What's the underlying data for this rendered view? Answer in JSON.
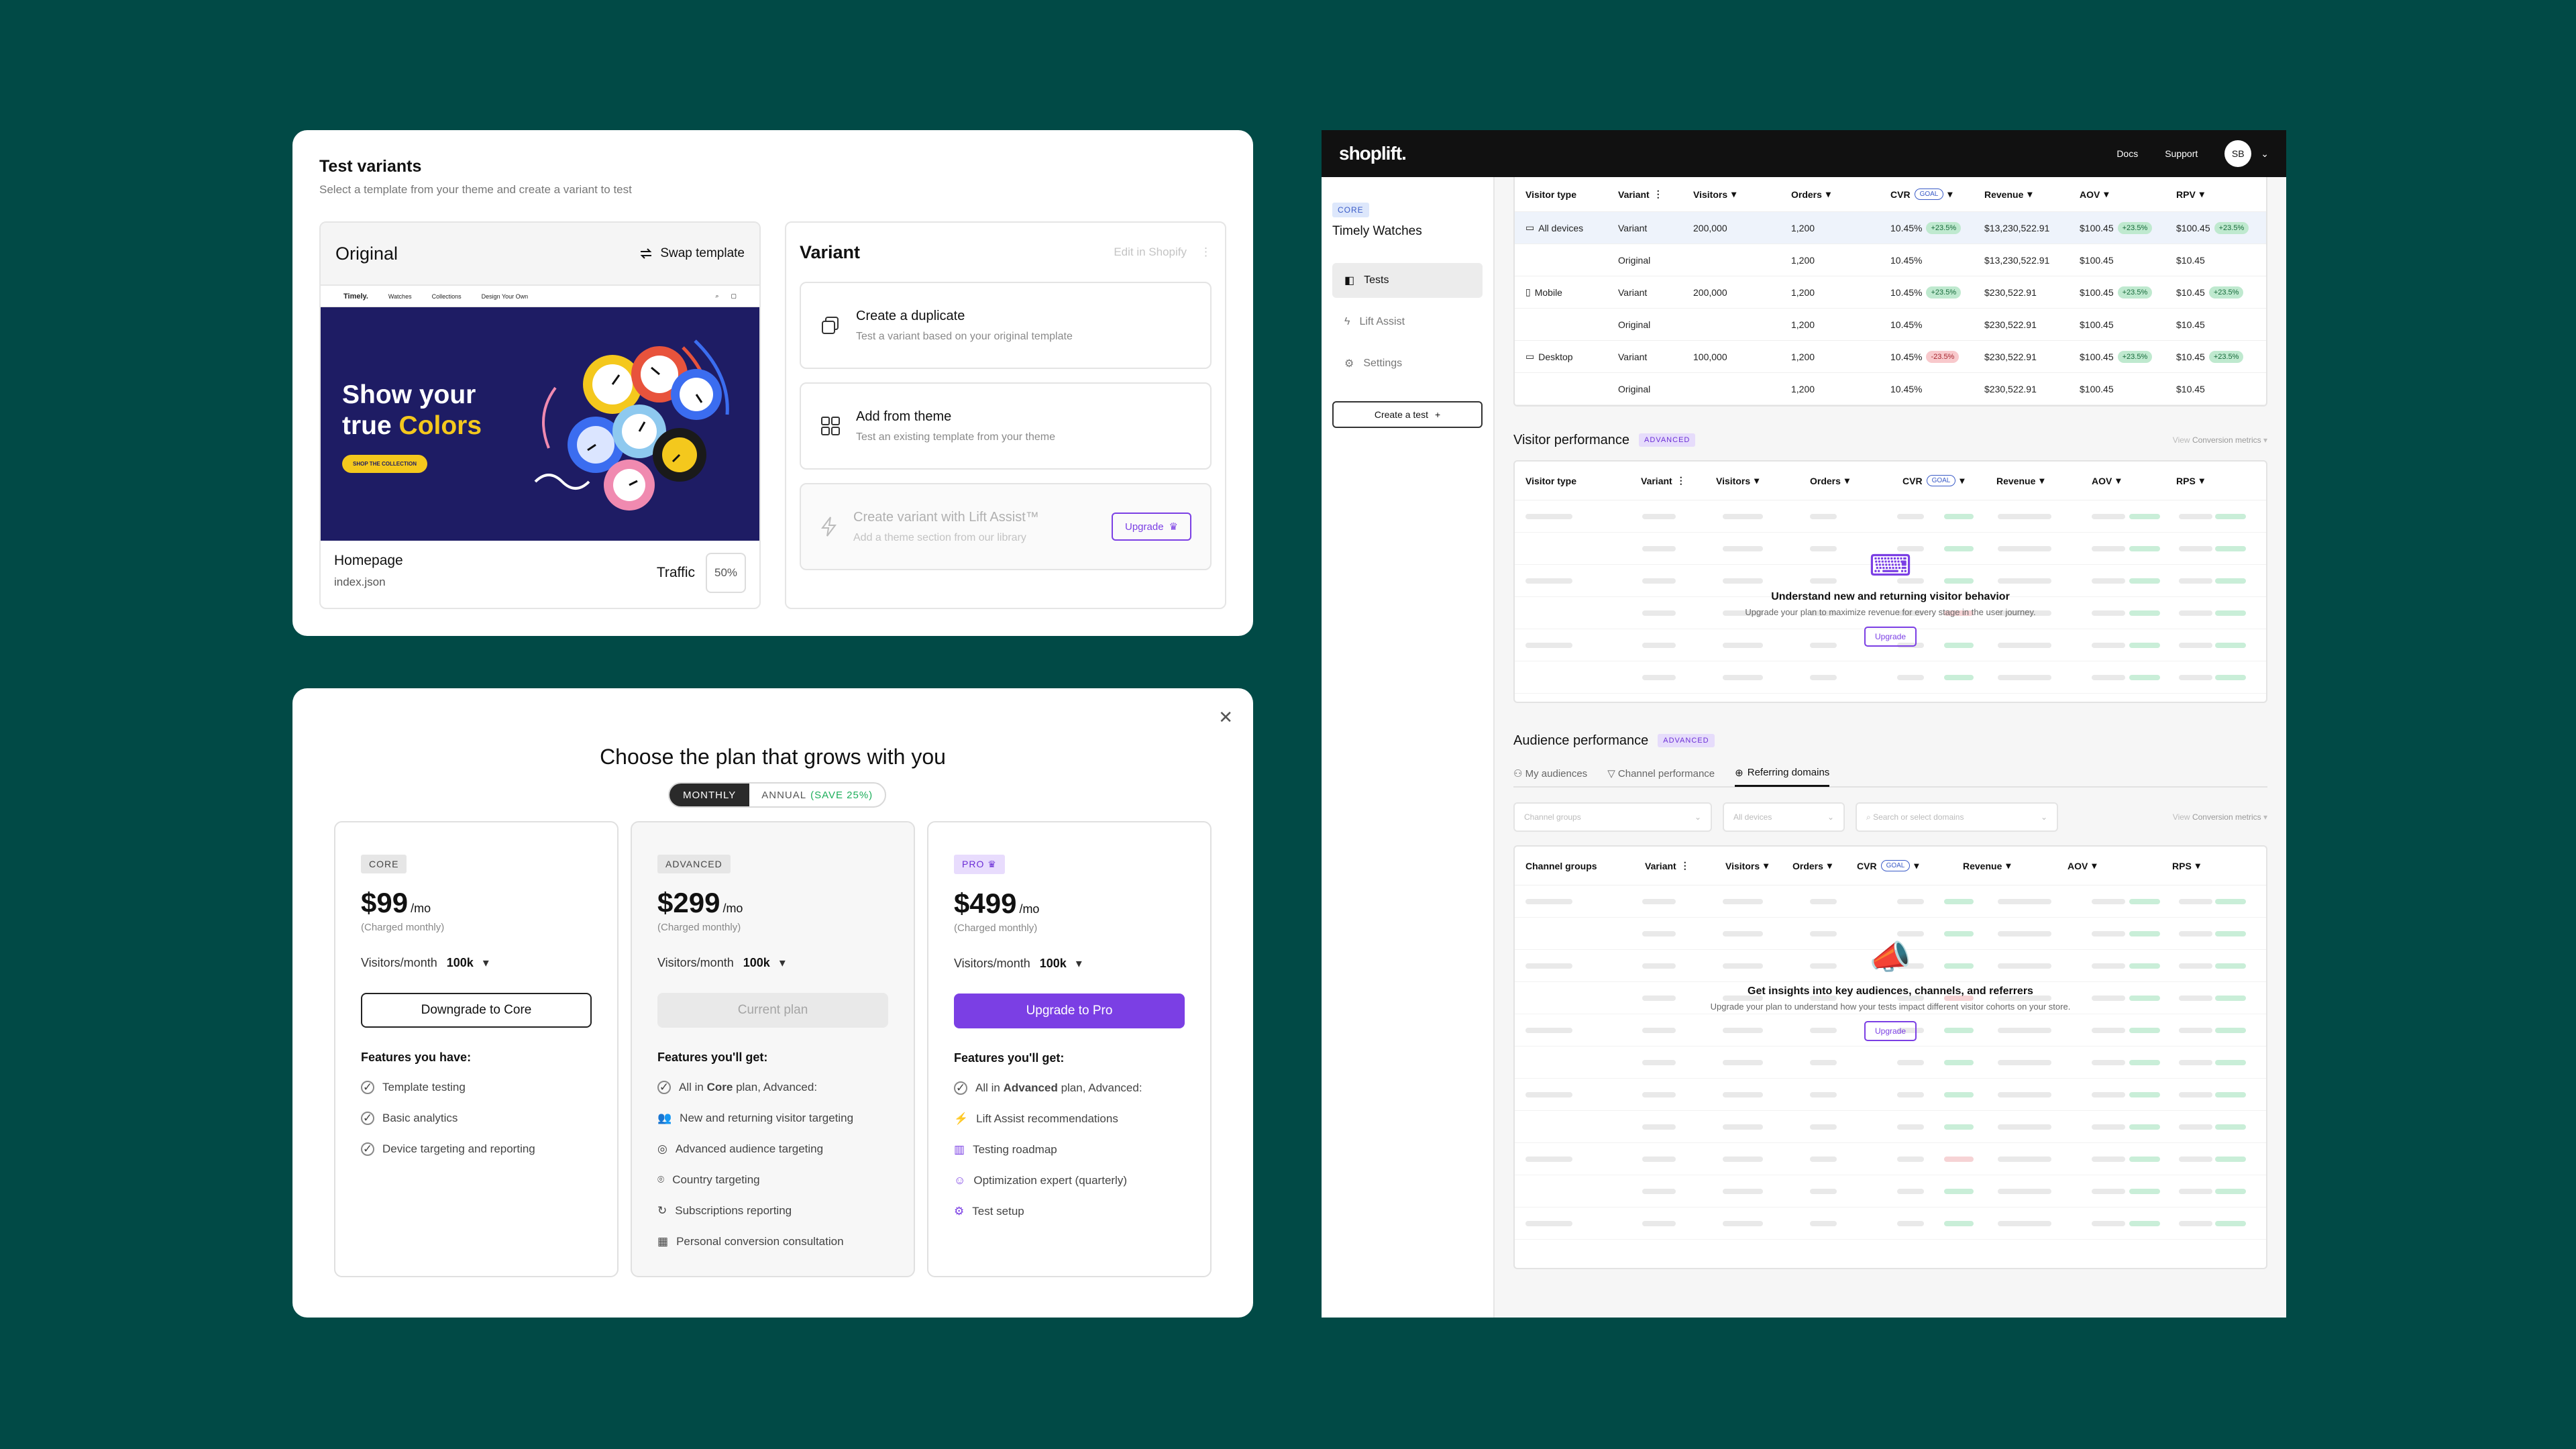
{
  "test_variants": {
    "title": "Test variants",
    "subtitle": "Select a template from your theme and create a variant to test",
    "original": {
      "label": "Original",
      "swap_label": "Swap template",
      "preview": {
        "logo": "Timely.",
        "nav": [
          "Watches",
          "Collections",
          "Design Your Own"
        ],
        "headline_1": "Show your",
        "headline_2": "true",
        "headline_accent": "Colors",
        "cta": "SHOP THE COLLECTION"
      },
      "template_name": "Homepage",
      "file": "index.json",
      "traffic_label": "Traffic",
      "traffic_value": "50%"
    },
    "variant": {
      "label": "Variant",
      "edit_label": "Edit in Shopify",
      "options": [
        {
          "title": "Create a duplicate",
          "desc": "Test a variant based on your original template"
        },
        {
          "title": "Add from theme",
          "desc": "Test an existing template from your theme"
        },
        {
          "title": "Create variant with Lift Assist™",
          "desc": "Add a theme section from our library",
          "button": "Upgrade"
        }
      ]
    }
  },
  "plans": {
    "title": "Choose the plan that grows with you",
    "toggle": {
      "monthly": "MONTHLY",
      "annual": "ANNUAL",
      "save": "(SAVE 25%)"
    },
    "items": [
      {
        "badge": "CORE",
        "price": "$99",
        "per": "/mo",
        "charged": "(Charged monthly)",
        "visitors_label": "Visitors/month",
        "visitors_value": "100k",
        "button": "Downgrade to Core",
        "features_head": "Features you have:",
        "features": [
          "Template testing",
          "Basic analytics",
          "Device targeting and reporting"
        ]
      },
      {
        "badge": "ADVANCED",
        "price": "$299",
        "per": "/mo",
        "charged": "(Charged monthly)",
        "visitors_label": "Visitors/month",
        "visitors_value": "100k",
        "button": "Current plan",
        "features_head": "Features you'll get:",
        "features_intro_pre": "All in",
        "features_intro_plan": "Core",
        "features_intro_post": "plan, Advanced:",
        "features": [
          "New and returning visitor targeting",
          "Advanced audience targeting",
          "Country targeting",
          "Subscriptions reporting",
          "Personal conversion consultation"
        ]
      },
      {
        "badge": "PRO",
        "price": "$499",
        "per": "/mo",
        "charged": "(Charged monthly)",
        "visitors_label": "Visitors/month",
        "visitors_value": "100k",
        "button": "Upgrade to Pro",
        "features_head": "Features you'll get:",
        "features_intro_pre": "All in",
        "features_intro_plan": "Advanced",
        "features_intro_post": "plan, Advanced:",
        "features": [
          "Lift Assist recommendations",
          "Testing roadmap",
          "Optimization expert (quarterly)",
          "Test setup"
        ]
      }
    ]
  },
  "dashboard": {
    "brand": "shoplift.",
    "nav": {
      "docs": "Docs",
      "support": "Support",
      "avatar": "SB"
    },
    "sidebar": {
      "plan_badge": "CORE",
      "store": "Timely Watches",
      "items": [
        "Tests",
        "Lift Assist",
        "Settings"
      ],
      "create": "Create a test"
    },
    "device_table": {
      "headers": [
        "Visitor type",
        "Variant",
        "Visitors",
        "Orders",
        "CVR",
        "Revenue",
        "AOV",
        "RPV"
      ],
      "goal": "GOAL",
      "rows": [
        {
          "type": "All devices",
          "variant": "Variant",
          "visitors": "200,000",
          "orders": "1,200",
          "cvr": "10.45%",
          "cvr_d": "+23.5%",
          "rev": "$13,230,522.91",
          "aov": "$100.45",
          "aov_d": "+23.5%",
          "rpv": "$100.45",
          "rpv_d": "+23.5%"
        },
        {
          "type": "",
          "variant": "Original",
          "visitors": "",
          "orders": "1,200",
          "cvr": "10.45%",
          "cvr_d": "",
          "rev": "$13,230,522.91",
          "aov": "$100.45",
          "aov_d": "",
          "rpv": "$10.45",
          "rpv_d": ""
        },
        {
          "type": "Mobile",
          "variant": "Variant",
          "visitors": "200,000",
          "orders": "1,200",
          "cvr": "10.45%",
          "cvr_d": "+23.5%",
          "rev": "$230,522.91",
          "aov": "$100.45",
          "aov_d": "+23.5%",
          "rpv": "$10.45",
          "rpv_d": "+23.5%"
        },
        {
          "type": "",
          "variant": "Original",
          "visitors": "",
          "orders": "1,200",
          "cvr": "10.45%",
          "cvr_d": "",
          "rev": "$230,522.91",
          "aov": "$100.45",
          "aov_d": "",
          "rpv": "$10.45",
          "rpv_d": ""
        },
        {
          "type": "Desktop",
          "variant": "Variant",
          "visitors": "100,000",
          "orders": "1,200",
          "cvr": "10.45%",
          "cvr_d": "-23.5%",
          "rev": "$230,522.91",
          "aov": "$100.45",
          "aov_d": "+23.5%",
          "rpv": "$10.45",
          "rpv_d": "+23.5%"
        },
        {
          "type": "",
          "variant": "Original",
          "visitors": "",
          "orders": "1,200",
          "cvr": "10.45%",
          "cvr_d": "",
          "rev": "$230,522.91",
          "aov": "$100.45",
          "aov_d": "",
          "rpv": "$10.45",
          "rpv_d": ""
        }
      ]
    },
    "visitor_perf": {
      "title": "Visitor performance",
      "badge": "ADVANCED",
      "view": "View",
      "metrics": "Conversion metrics",
      "headers": [
        "Visitor type",
        "Variant",
        "Visitors",
        "Orders",
        "CVR",
        "Revenue",
        "AOV",
        "RPS"
      ],
      "upsell_title": "Understand new and returning visitor behavior",
      "upsell_desc": "Upgrade your plan to maximize revenue for every stage in the user journey.",
      "upsell_btn": "Upgrade"
    },
    "audience_perf": {
      "title": "Audience performance",
      "badge": "ADVANCED",
      "tabs": [
        "My audiences",
        "Channel performance",
        "Referring domains"
      ],
      "filters": [
        "Channel groups",
        "All devices",
        "Search or select domains"
      ],
      "view": "View",
      "metrics": "Conversion metrics",
      "headers": [
        "Channel groups",
        "Variant",
        "Visitors",
        "Orders",
        "CVR",
        "Revenue",
        "AOV",
        "RPS"
      ],
      "upsell_title": "Get insights into key audiences, channels, and referrers",
      "upsell_desc": "Upgrade your plan to understand how your tests impact different visitor cohorts on your store.",
      "upsell_btn": "Upgrade"
    }
  },
  "colors": {
    "background": "#014a46",
    "accent": "#7b3fe4",
    "hero": "#1e1c64",
    "hero_accent": "#f4c81d"
  }
}
